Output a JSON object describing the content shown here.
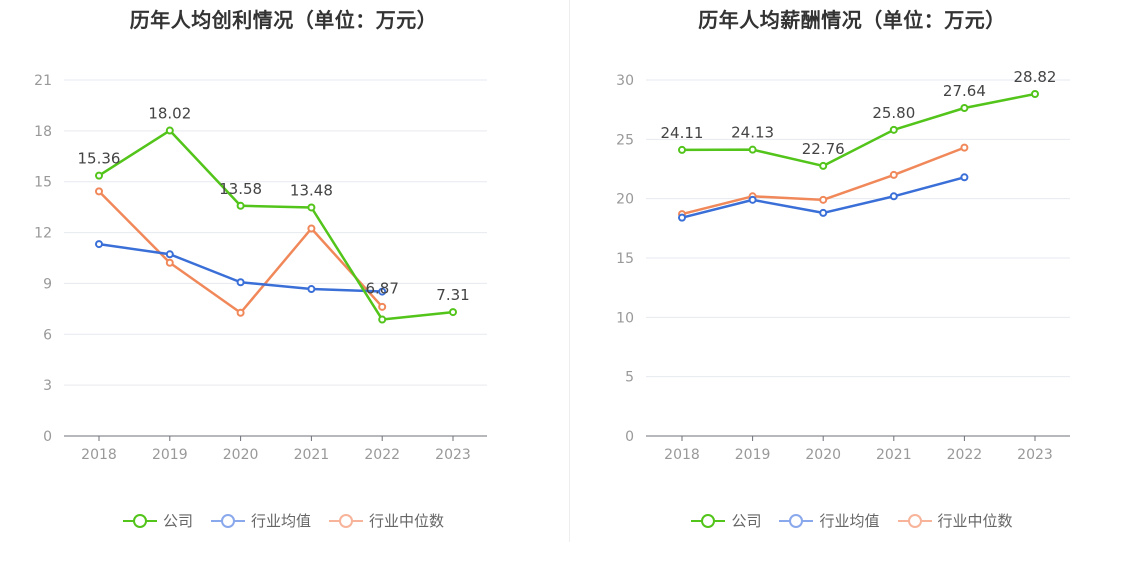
{
  "chart_data": [
    {
      "type": "line",
      "title": "历年人均创利情况（单位：万元）",
      "categories": [
        "2018",
        "2019",
        "2020",
        "2021",
        "2022",
        "2023"
      ],
      "ylim": [
        0,
        21
      ],
      "yticks": [
        0,
        3,
        6,
        9,
        12,
        15,
        18,
        21
      ],
      "grid": true,
      "legend_position": "bottom-center",
      "series": [
        {
          "name": "公司",
          "color": "#52c41a",
          "values": [
            15.36,
            18.02,
            13.58,
            13.48,
            6.87,
            7.31
          ],
          "labels": [
            "15.36",
            "18.02",
            "13.58",
            "13.48",
            "6.87",
            "7.31"
          ]
        },
        {
          "name": "行业均值",
          "color": "#3a6fd8",
          "values": [
            11.32,
            10.72,
            9.07,
            8.67,
            8.52,
            null
          ]
        },
        {
          "name": "行业中位数",
          "color": "#f0885a",
          "values": [
            14.43,
            10.22,
            7.27,
            12.24,
            7.62,
            null
          ]
        }
      ]
    },
    {
      "type": "line",
      "title": "历年人均薪酬情况（单位：万元）",
      "categories": [
        "2018",
        "2019",
        "2020",
        "2021",
        "2022",
        "2023"
      ],
      "ylim": [
        0,
        30
      ],
      "yticks": [
        0,
        5,
        10,
        15,
        20,
        25,
        30
      ],
      "grid": true,
      "legend_position": "bottom-center",
      "series": [
        {
          "name": "公司",
          "color": "#52c41a",
          "values": [
            24.11,
            24.13,
            22.76,
            25.8,
            27.64,
            28.82
          ],
          "labels": [
            "24.11",
            "24.13",
            "22.76",
            "25.80",
            "27.64",
            "28.82"
          ]
        },
        {
          "name": "行业均值",
          "color": "#3a6fd8",
          "values": [
            18.4,
            19.9,
            18.8,
            20.2,
            21.8,
            null
          ]
        },
        {
          "name": "行业中位数",
          "color": "#f0885a",
          "values": [
            18.7,
            20.2,
            19.9,
            22.0,
            24.3,
            null
          ]
        }
      ]
    }
  ],
  "legend": {
    "company": "公司",
    "industry_avg": "行业均值",
    "industry_median": "行业中位数",
    "colors": {
      "company": "#52c41a",
      "industry_avg": "#8aa8ec",
      "industry_median": "#f7b49a"
    }
  }
}
